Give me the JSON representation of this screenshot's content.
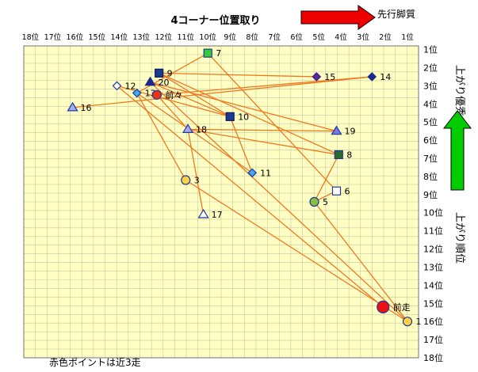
{
  "chart_data": {
    "type": "scatter",
    "title": "4コーナー位置取り",
    "top_arrow_label": "先行脚質",
    "right_top_label": "上がり優秀",
    "right_bottom_label": "上がり順位",
    "footnote": "赤色ポイントは近3走",
    "x_ticks": [
      "18位",
      "17位",
      "16位",
      "15位",
      "14位",
      "13位",
      "12位",
      "11位",
      "10位",
      "9位",
      "8位",
      "7位",
      "6位",
      "5位",
      "4位",
      "3位",
      "2位",
      "1位"
    ],
    "y_ticks": [
      "1位",
      "2位",
      "3位",
      "4位",
      "5位",
      "6位",
      "7位",
      "8位",
      "9位",
      "10位",
      "11位",
      "12位",
      "13位",
      "14位",
      "15位",
      "16位",
      "17位",
      "18位"
    ],
    "xlim": [
      18.3,
      0.5
    ],
    "ylim": [
      0.8,
      18
    ],
    "grid": true,
    "colors": {
      "plot_bg": "#ffffc4",
      "grid": "#c8c8a0",
      "line": "#f07820",
      "red_arrow": "#ee0000",
      "green_arrow": "#00cc00"
    },
    "horses": [
      {
        "label": "1",
        "x": 1.0,
        "y": 16.0,
        "shape": "circle",
        "fill": "#ffd040",
        "stroke": "#1a3aa0"
      },
      {
        "label": "3",
        "x": 11.0,
        "y": 8.2,
        "shape": "circle",
        "fill": "#ffd040",
        "stroke": "#1a3aa0"
      },
      {
        "label": "5",
        "x": 5.2,
        "y": 9.4,
        "shape": "circle",
        "fill": "#88c040",
        "stroke": "#1a3aa0"
      },
      {
        "label": "6",
        "x": 4.2,
        "y": 8.8,
        "shape": "square",
        "fill": "#ffffff",
        "stroke": "#1a3aa0"
      },
      {
        "label": "7",
        "x": 10.0,
        "y": 1.2,
        "shape": "square",
        "fill": "#33cc33",
        "stroke": "#1a3aa0"
      },
      {
        "label": "8",
        "x": 4.1,
        "y": 6.8,
        "shape": "square",
        "fill": "#2a6a2a",
        "stroke": "#1a3aa0"
      },
      {
        "label": "9",
        "x": 12.2,
        "y": 2.3,
        "shape": "square",
        "fill": "#1a3a90",
        "stroke": "#0a1a60"
      },
      {
        "label": "10",
        "x": 9.0,
        "y": 4.7,
        "shape": "square",
        "fill": "#1a3a90",
        "stroke": "#0a1a60"
      },
      {
        "label": "11",
        "x": 8.0,
        "y": 7.8,
        "shape": "diamond",
        "fill": "#44aaee",
        "stroke": "#1a3aa0"
      },
      {
        "label": "12",
        "x": 14.1,
        "y": 3.0,
        "shape": "diamond",
        "fill": "#ffffff",
        "stroke": "#1a3aa0"
      },
      {
        "label": "13",
        "x": 13.2,
        "y": 3.4,
        "shape": "diamond",
        "fill": "#44aaee",
        "stroke": "#1a3aa0"
      },
      {
        "label": "14",
        "x": 2.6,
        "y": 2.5,
        "shape": "diamond",
        "fill": "#1a2a8a",
        "stroke": "#1a2a8a"
      },
      {
        "label": "15",
        "x": 5.1,
        "y": 2.5,
        "shape": "diamond",
        "fill": "#5a2a9a",
        "stroke": "#3a1a7a"
      },
      {
        "label": "16",
        "x": 16.1,
        "y": 4.2,
        "shape": "triangle",
        "fill": "#aaaaee",
        "stroke": "#1a3aa0"
      },
      {
        "label": "17",
        "x": 10.2,
        "y": 10.1,
        "shape": "triangle",
        "fill": "#ffffff",
        "stroke": "#1a3aa0"
      },
      {
        "label": "18",
        "x": 10.9,
        "y": 5.4,
        "shape": "triangle",
        "fill": "#aaaaee",
        "stroke": "#1a3aa0"
      },
      {
        "label": "19",
        "x": 4.2,
        "y": 5.5,
        "shape": "triangle",
        "fill": "#7777dd",
        "stroke": "#1a3aa0"
      },
      {
        "label": "20",
        "x": 12.6,
        "y": 2.8,
        "shape": "triangle",
        "fill": "#1a2a8a",
        "stroke": "#1a2a8a"
      },
      {
        "label": "前走",
        "x": 2.1,
        "y": 15.2,
        "shape": "bigcircle",
        "fill": "#ee1111",
        "stroke": "#1a3aa0"
      },
      {
        "label": "前々",
        "x": 12.3,
        "y": 3.5,
        "shape": "circle",
        "fill": "#ee3311",
        "stroke": "#1a3aa0"
      }
    ],
    "connections": [
      [
        "1",
        "3"
      ],
      [
        "1",
        "20"
      ],
      [
        "1",
        "5"
      ],
      [
        "3",
        "13"
      ],
      [
        "5",
        "6"
      ],
      [
        "5",
        "8"
      ],
      [
        "7",
        "6"
      ],
      [
        "7",
        "13"
      ],
      [
        "8",
        "9"
      ],
      [
        "8",
        "18"
      ],
      [
        "9",
        "10"
      ],
      [
        "9",
        "15"
      ],
      [
        "10",
        "11"
      ],
      [
        "10",
        "12"
      ],
      [
        "10",
        "20"
      ],
      [
        "11",
        "13"
      ],
      [
        "14",
        "16"
      ],
      [
        "14",
        "前々"
      ],
      [
        "17",
        "18"
      ],
      [
        "18",
        "19"
      ],
      [
        "18",
        "前々"
      ],
      [
        "19",
        "20"
      ],
      [
        "前走",
        "12"
      ]
    ]
  }
}
